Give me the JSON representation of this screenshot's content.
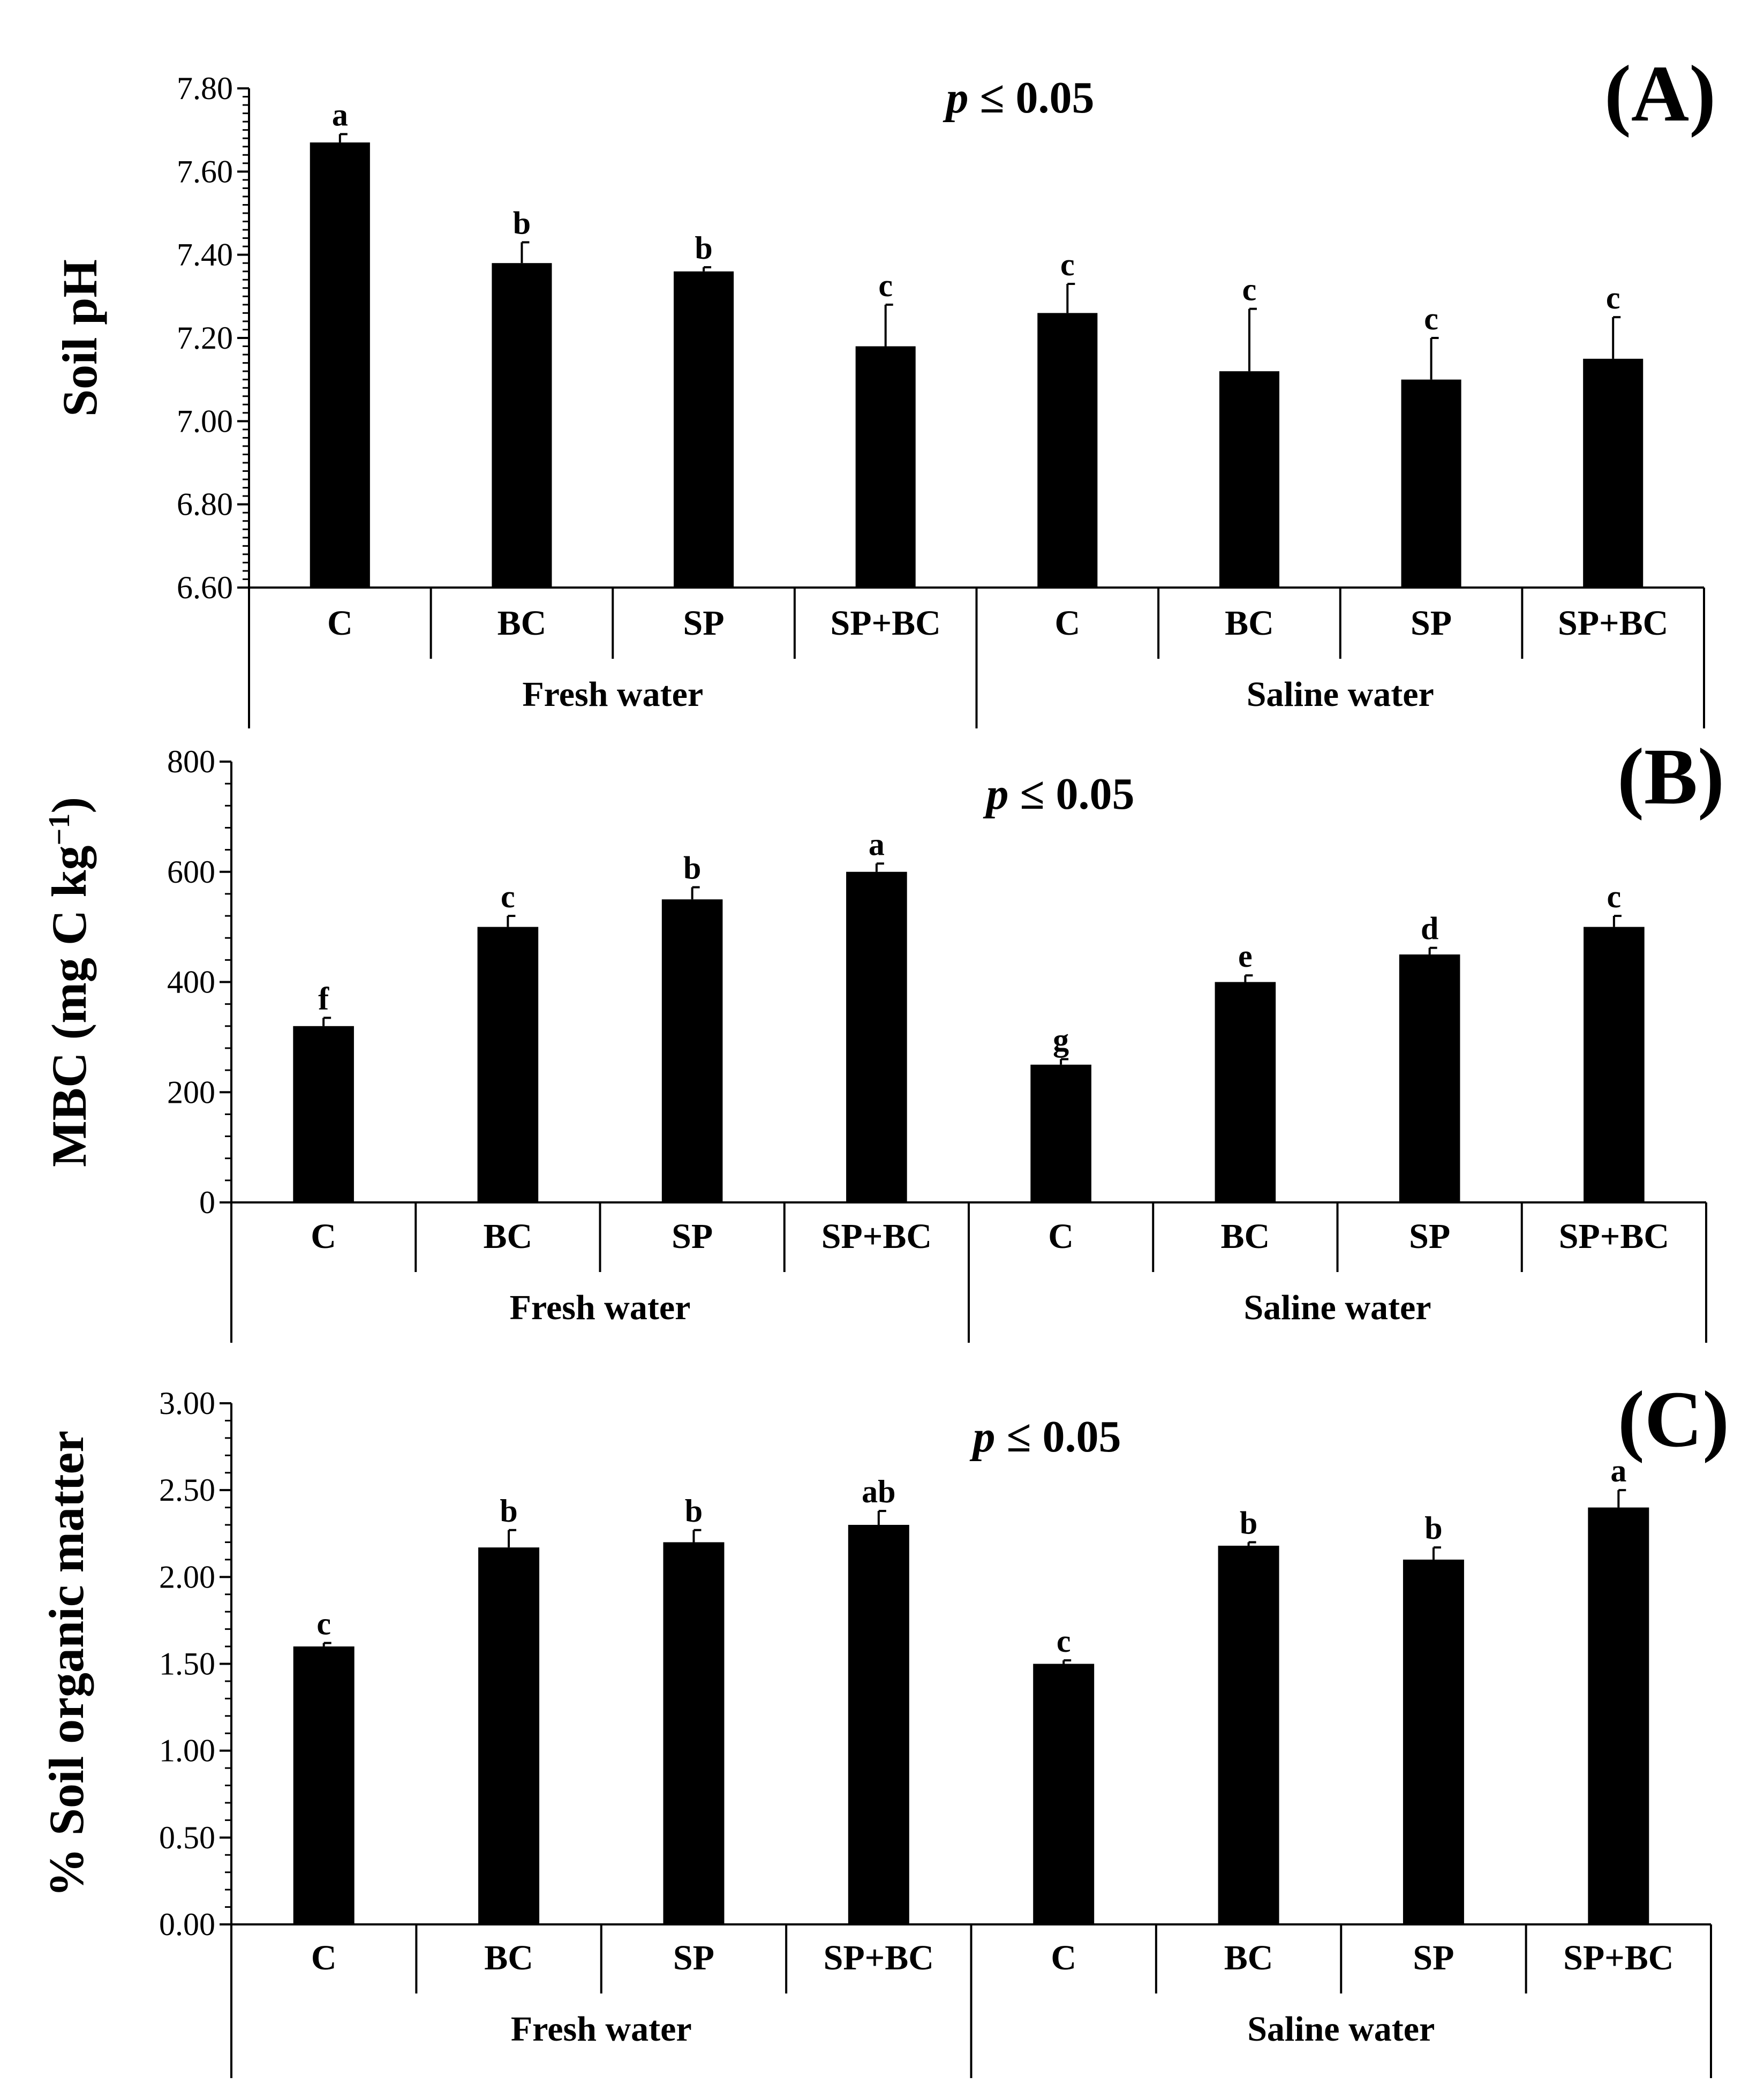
{
  "chart_data": [
    {
      "type": "bar",
      "panel": "(A)",
      "title": "",
      "annotation": {
        "italic": "p",
        "rest": " ≤ 0.05"
      },
      "ylabel": "Soil pH",
      "xlabel": "",
      "ylim": [
        6.6,
        7.8
      ],
      "yticks": [
        "6.60",
        "6.80",
        "7.00",
        "7.20",
        "7.40",
        "7.60",
        "7.80"
      ],
      "categories": [
        "C",
        "BC",
        "SP",
        "SP+BC",
        "C",
        "BC",
        "SP",
        "SP+BC"
      ],
      "groups": [
        "Fresh water",
        "Saline water"
      ],
      "values": [
        7.67,
        7.38,
        7.36,
        7.18,
        7.26,
        7.12,
        7.1,
        7.15
      ],
      "errors": [
        0.02,
        0.05,
        0.01,
        0.1,
        0.07,
        0.15,
        0.1,
        0.1
      ],
      "letters": [
        "a",
        "b",
        "b",
        "c",
        "c",
        "c",
        "c",
        "c"
      ],
      "bar_color": "#000000",
      "grid": false
    },
    {
      "type": "bar",
      "panel": "(B)",
      "title": "",
      "annotation": {
        "italic": "p",
        "rest": " ≤ 0.05"
      },
      "ylabel": "MBC (mg C kg",
      "ylabel_sup": "−1",
      "ylabel_end": ")",
      "xlabel": "",
      "ylim": [
        0,
        800
      ],
      "yticks": [
        "0",
        "200",
        "400",
        "600",
        "800"
      ],
      "categories": [
        "C",
        "BC",
        "SP",
        "SP+BC",
        "C",
        "BC",
        "SP",
        "SP+BC"
      ],
      "groups": [
        "Fresh water",
        "Saline water"
      ],
      "values": [
        320,
        500,
        550,
        600,
        250,
        400,
        450,
        500
      ],
      "errors": [
        15,
        20,
        22,
        15,
        10,
        12,
        12,
        20
      ],
      "letters": [
        "f",
        "c",
        "b",
        "a",
        "g",
        "e",
        "d",
        "c"
      ],
      "bar_color": "#000000",
      "grid": false
    },
    {
      "type": "bar",
      "panel": "(C)",
      "title": "",
      "annotation": {
        "italic": "p",
        "rest": " ≤ 0.05"
      },
      "ylabel": "% Soil organic matter",
      "xlabel": "",
      "ylim": [
        0,
        3
      ],
      "yticks": [
        "0.00",
        "0.50",
        "1.00",
        "1.50",
        "2.00",
        "2.50",
        "3.00"
      ],
      "categories": [
        "C",
        "BC",
        "SP",
        "SP+BC",
        "C",
        "BC",
        "SP",
        "SP+BC"
      ],
      "groups": [
        "Fresh water",
        "Saline water"
      ],
      "values": [
        1.6,
        2.17,
        2.2,
        2.3,
        1.5,
        2.18,
        2.1,
        2.4
      ],
      "errors": [
        0.02,
        0.1,
        0.07,
        0.08,
        0.02,
        0.02,
        0.07,
        0.1
      ],
      "letters": [
        "c",
        "b",
        "b",
        "ab",
        "c",
        "b",
        "b",
        "a"
      ],
      "bar_color": "#000000",
      "grid": false
    }
  ]
}
